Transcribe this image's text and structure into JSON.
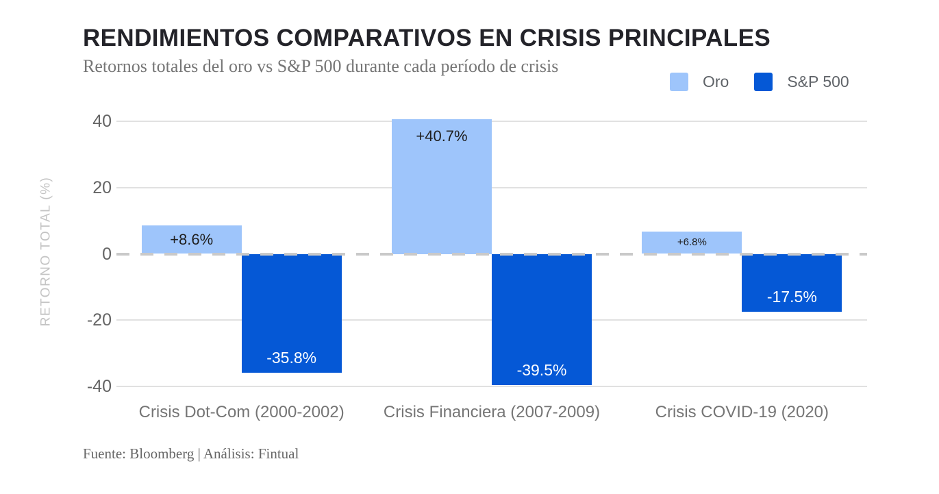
{
  "header": {
    "title": "RENDIMIENTOS COMPARATIVOS EN CRISIS PRINCIPALES",
    "subtitle": "Retornos totales del oro vs S&P 500 durante cada período de crisis"
  },
  "legend": {
    "items": [
      {
        "label": "Oro",
        "color": "#9EC5FB"
      },
      {
        "label": "S&P 500",
        "color": "#0558D6"
      }
    ]
  },
  "chart_data": {
    "type": "bar",
    "title": "RENDIMIENTOS COMPARATIVOS EN CRISIS PRINCIPALES",
    "subtitle": "Retornos totales del oro vs S&P 500 durante cada período de crisis",
    "categories": [
      "Crisis Dot-Com (2000-2002)",
      "Crisis Financiera (2007-2009)",
      "Crisis COVID-19 (2020)"
    ],
    "series": [
      {
        "name": "Oro",
        "color": "#9EC5FB",
        "values": [
          8.6,
          40.7,
          6.8
        ],
        "labels": [
          "+8.6%",
          "+40.7%",
          "+6.8%"
        ],
        "label_color": "#1f1f1f"
      },
      {
        "name": "S&P 500",
        "color": "#0558D6",
        "values": [
          -35.8,
          -39.5,
          -17.5
        ],
        "labels": [
          "-35.8%",
          "-39.5%",
          "-17.5%"
        ],
        "label_color": "#ffffff"
      }
    ],
    "ylabel": "RETORNO TOTAL (%)",
    "ylim": [
      -40,
      40
    ],
    "yticks": [
      40,
      20,
      0,
      -20,
      -40
    ],
    "grid": true,
    "zero_line": "dashed",
    "legend_position": "top-right"
  },
  "footer": {
    "source": "Fuente: Bloomberg | Análisis: Fintual"
  }
}
